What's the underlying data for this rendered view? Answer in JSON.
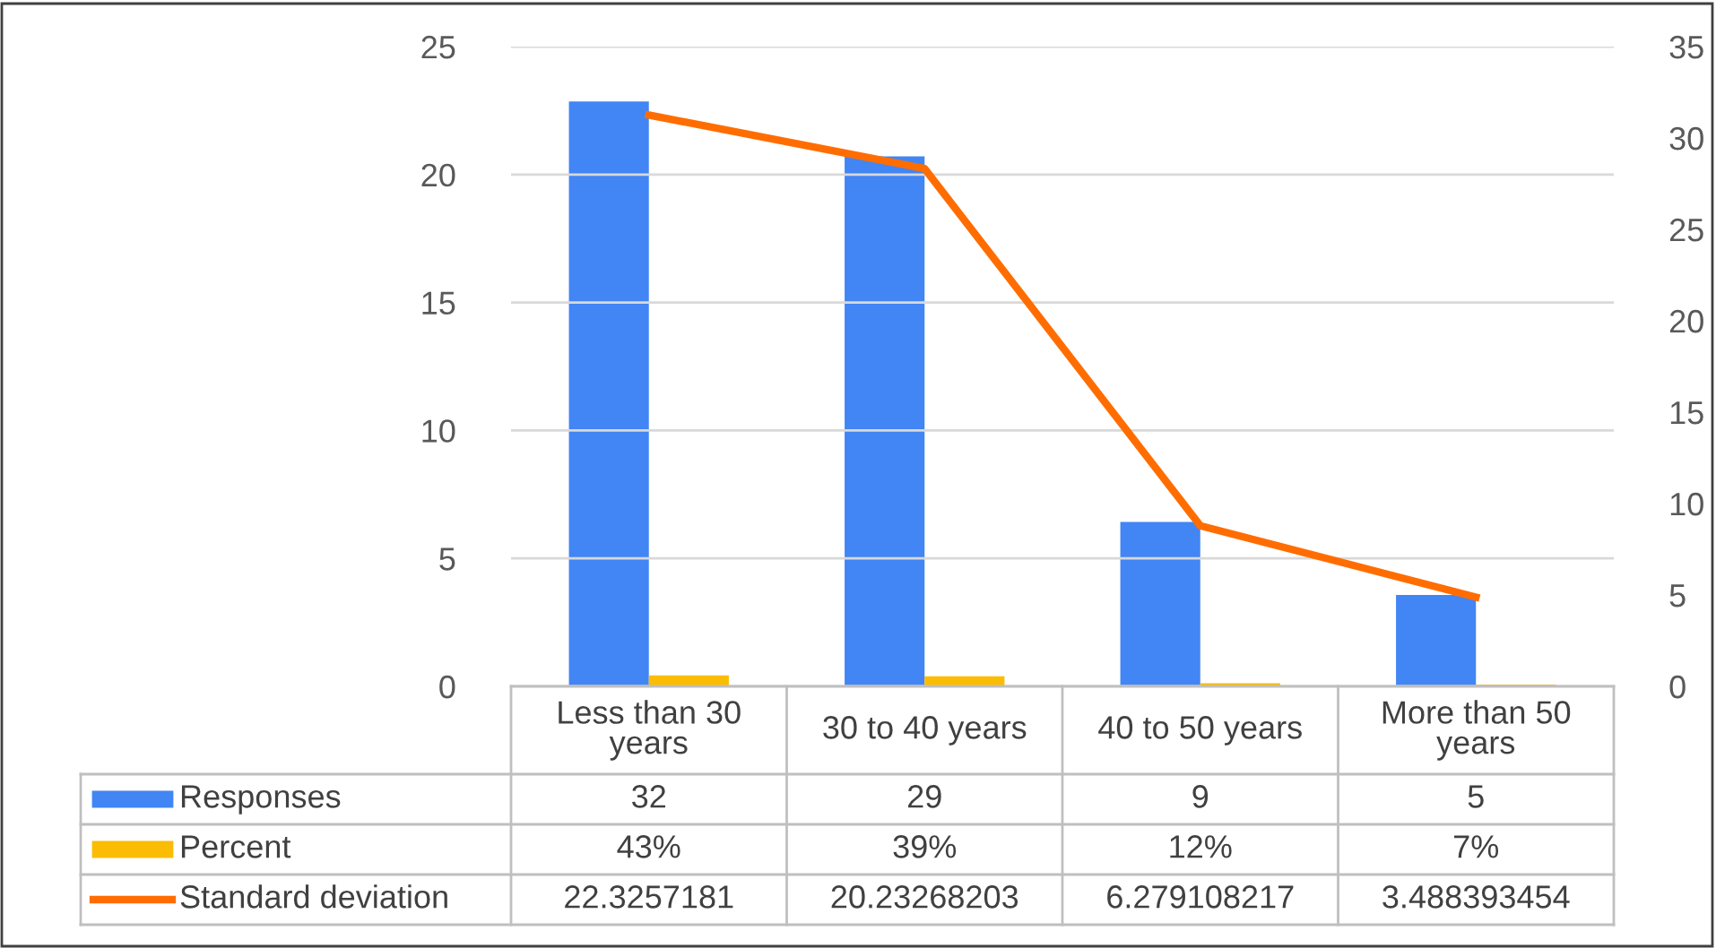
{
  "chart_data": {
    "type": "bar",
    "categories": [
      "Less than 30 years",
      "30 to 40 years",
      "40 to 50 years",
      "More than 50 years"
    ],
    "series": [
      {
        "name": "Responses",
        "axis": "y2",
        "color": "#4285f4",
        "values": [
          32,
          29,
          9,
          5
        ],
        "value_labels": [
          "32",
          "29",
          "9",
          "5"
        ]
      },
      {
        "name": "Percent",
        "axis": "y",
        "color": "#fbbc04",
        "values": [
          0.43,
          0.39,
          0.12,
          0.07
        ],
        "value_labels": [
          "43%",
          "39%",
          "12%",
          "7%"
        ]
      },
      {
        "name": "Standard deviation",
        "type": "line",
        "axis": "y",
        "color": "#ff6d01",
        "values": [
          22.3257181,
          20.23268203,
          6.279108217,
          3.488393454
        ],
        "value_labels": [
          "22.3257181",
          "20.23268203",
          "6.279108217",
          "3.488393454"
        ]
      }
    ],
    "ylim": [
      0,
      25
    ],
    "yticks": [
      0,
      5,
      10,
      15,
      20,
      25
    ],
    "y2lim": [
      0,
      35
    ],
    "y2ticks": [
      0,
      5,
      10,
      15,
      20,
      25,
      30,
      35
    ],
    "grid": "y",
    "legend": "bottom",
    "marker": "none",
    "line_style": "solid"
  }
}
